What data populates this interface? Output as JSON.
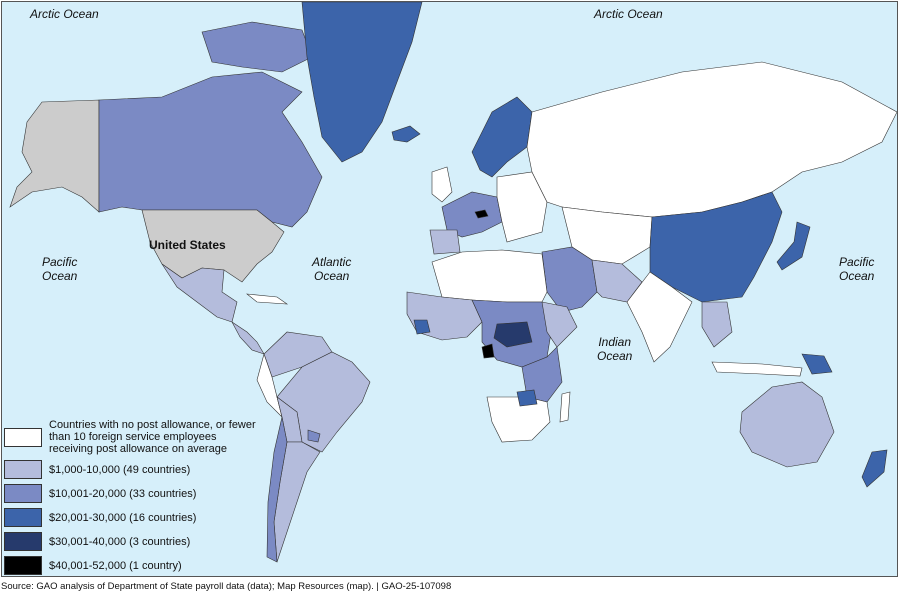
{
  "colors": {
    "ocean": "#d6effa",
    "none": "#ffffff",
    "us": "#cccccc",
    "tier1": "#b4bcdc",
    "tier2": "#7b8ac4",
    "tier3": "#3c64aa",
    "tier4": "#263a6c",
    "tier5": "#000000",
    "border": "#333333"
  },
  "map": {
    "ocean_labels": [
      {
        "name": "arctic-ocean-label-west",
        "text": "Arctic Ocean"
      },
      {
        "name": "arctic-ocean-label-east",
        "text": "Arctic Ocean"
      },
      {
        "name": "pacific-ocean-label-west",
        "text": "Pacific\nOcean"
      },
      {
        "name": "atlantic-ocean-label",
        "text": "Atlantic\nOcean"
      },
      {
        "name": "indian-ocean-label",
        "text": "Indian\nOcean"
      },
      {
        "name": "pacific-ocean-label-east",
        "text": "Pacific\nOcean"
      }
    ],
    "us_label": "United States"
  },
  "legend": {
    "items": [
      {
        "label": "Countries with no post allowance, or fewer than 10 foreign service employees receiving post allowance on average",
        "color": "#ffffff"
      },
      {
        "label": "$1,000-10,000 (49 countries)",
        "color": "#b4bcdc"
      },
      {
        "label": "$10,001-20,000 (33 countries)",
        "color": "#7b8ac4"
      },
      {
        "label": "$20,001-30,000 (16 countries)",
        "color": "#3c64aa"
      },
      {
        "label": "$30,001-40,000 (3 countries)",
        "color": "#263a6c"
      },
      {
        "label": "$40,001-52,000 (1 country)",
        "color": "#000000"
      }
    ]
  },
  "source": "Source: GAO analysis of Department of State payroll data (data); Map Resources (map).  |  GAO-25-107098"
}
